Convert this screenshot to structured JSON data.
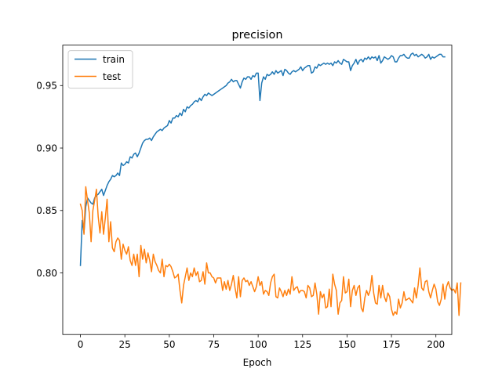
{
  "chart_data": {
    "type": "line",
    "title": "precision",
    "xlabel": "Epoch",
    "ylabel": "",
    "xlim": [
      -9.95,
      208.95
    ],
    "ylim": [
      0.7507,
      0.9824
    ],
    "xticks": [
      0,
      25,
      50,
      75,
      100,
      125,
      150,
      175,
      200
    ],
    "yticks": [
      0.8,
      0.85,
      0.9,
      0.95
    ],
    "ytick_labels": [
      "0.80",
      "0.85",
      "0.90",
      "0.95"
    ],
    "grid": false,
    "legend_position": "upper-left",
    "series": [
      {
        "name": "train",
        "color": "#1f77b4",
        "values": [
          0.806,
          0.842,
          0.832,
          0.853,
          0.86,
          0.858,
          0.856,
          0.855,
          0.86,
          0.862,
          0.863,
          0.865,
          0.867,
          0.862,
          0.866,
          0.87,
          0.873,
          0.875,
          0.878,
          0.877,
          0.878,
          0.88,
          0.878,
          0.888,
          0.886,
          0.887,
          0.889,
          0.888,
          0.893,
          0.892,
          0.895,
          0.896,
          0.893,
          0.896,
          0.9,
          0.904,
          0.906,
          0.907,
          0.907,
          0.908,
          0.906,
          0.909,
          0.911,
          0.913,
          0.914,
          0.915,
          0.914,
          0.916,
          0.917,
          0.918,
          0.922,
          0.92,
          0.924,
          0.924,
          0.926,
          0.925,
          0.928,
          0.926,
          0.931,
          0.929,
          0.933,
          0.932,
          0.934,
          0.935,
          0.937,
          0.938,
          0.937,
          0.94,
          0.938,
          0.941,
          0.943,
          0.942,
          0.944,
          0.943,
          0.942,
          0.943,
          0.944,
          0.945,
          0.946,
          0.947,
          0.948,
          0.949,
          0.95,
          0.952,
          0.953,
          0.955,
          0.953,
          0.954,
          0.954,
          0.951,
          0.948,
          0.953,
          0.956,
          0.955,
          0.957,
          0.957,
          0.955,
          0.958,
          0.957,
          0.96,
          0.96,
          0.938,
          0.952,
          0.957,
          0.955,
          0.959,
          0.958,
          0.959,
          0.961,
          0.959,
          0.962,
          0.96,
          0.961,
          0.962,
          0.958,
          0.963,
          0.962,
          0.96,
          0.959,
          0.961,
          0.962,
          0.961,
          0.962,
          0.963,
          0.965,
          0.962,
          0.964,
          0.965,
          0.966,
          0.966,
          0.96,
          0.961,
          0.965,
          0.964,
          0.967,
          0.966,
          0.967,
          0.968,
          0.967,
          0.968,
          0.967,
          0.968,
          0.966,
          0.969,
          0.968,
          0.97,
          0.968,
          0.967,
          0.971,
          0.97,
          0.969,
          0.969,
          0.962,
          0.966,
          0.968,
          0.971,
          0.967,
          0.97,
          0.971,
          0.969,
          0.972,
          0.971,
          0.973,
          0.971,
          0.973,
          0.972,
          0.973,
          0.97,
          0.974,
          0.968,
          0.97,
          0.973,
          0.972,
          0.971,
          0.972,
          0.974,
          0.973,
          0.969,
          0.969,
          0.972,
          0.974,
          0.974,
          0.975,
          0.973,
          0.972,
          0.972,
          0.975,
          0.976,
          0.974,
          0.975,
          0.973,
          0.974,
          0.975,
          0.974,
          0.972,
          0.973,
          0.975,
          0.971,
          0.973,
          0.972,
          0.973,
          0.974,
          0.975,
          0.975,
          0.973,
          0.973
        ]
      },
      {
        "name": "test",
        "color": "#ff7f0e",
        "values": [
          0.855,
          0.85,
          0.831,
          0.869,
          0.858,
          0.848,
          0.825,
          0.85,
          0.858,
          0.867,
          0.845,
          0.832,
          0.849,
          0.831,
          0.844,
          0.859,
          0.825,
          0.841,
          0.82,
          0.817,
          0.825,
          0.828,
          0.826,
          0.811,
          0.823,
          0.818,
          0.815,
          0.821,
          0.81,
          0.806,
          0.815,
          0.806,
          0.815,
          0.797,
          0.822,
          0.811,
          0.819,
          0.808,
          0.816,
          0.81,
          0.801,
          0.815,
          0.809,
          0.806,
          0.802,
          0.8,
          0.811,
          0.797,
          0.806,
          0.805,
          0.807,
          0.805,
          0.801,
          0.796,
          0.797,
          0.799,
          0.786,
          0.776,
          0.79,
          0.797,
          0.804,
          0.794,
          0.8,
          0.797,
          0.804,
          0.798,
          0.801,
          0.793,
          0.794,
          0.801,
          0.791,
          0.808,
          0.8,
          0.8,
          0.797,
          0.796,
          0.792,
          0.796,
          0.796,
          0.796,
          0.786,
          0.793,
          0.787,
          0.794,
          0.786,
          0.791,
          0.798,
          0.788,
          0.78,
          0.797,
          0.781,
          0.794,
          0.796,
          0.793,
          0.794,
          0.79,
          0.793,
          0.789,
          0.785,
          0.789,
          0.797,
          0.79,
          0.793,
          0.783,
          0.786,
          0.785,
          0.782,
          0.792,
          0.797,
          0.799,
          0.781,
          0.78,
          0.788,
          0.785,
          0.781,
          0.786,
          0.782,
          0.787,
          0.783,
          0.797,
          0.786,
          0.788,
          0.789,
          0.784,
          0.786,
          0.786,
          0.785,
          0.78,
          0.79,
          0.788,
          0.781,
          0.782,
          0.792,
          0.783,
          0.767,
          0.785,
          0.78,
          0.783,
          0.772,
          0.773,
          0.787,
          0.773,
          0.799,
          0.791,
          0.786,
          0.767,
          0.776,
          0.778,
          0.797,
          0.784,
          0.785,
          0.795,
          0.773,
          0.786,
          0.79,
          0.782,
          0.788,
          0.79,
          0.772,
          0.769,
          0.78,
          0.786,
          0.782,
          0.786,
          0.798,
          0.784,
          0.776,
          0.775,
          0.79,
          0.78,
          0.79,
          0.781,
          0.777,
          0.784,
          0.781,
          0.771,
          0.766,
          0.769,
          0.767,
          0.779,
          0.772,
          0.776,
          0.785,
          0.778,
          0.779,
          0.78,
          0.778,
          0.776,
          0.788,
          0.78,
          0.79,
          0.804,
          0.788,
          0.786,
          0.793,
          0.794,
          0.785,
          0.78,
          0.786,
          0.791,
          0.787,
          0.777,
          0.774,
          0.779,
          0.791,
          0.779,
          0.789,
          0.793,
          0.788,
          0.786,
          0.787,
          0.784,
          0.792,
          0.766,
          0.792
        ]
      }
    ]
  }
}
